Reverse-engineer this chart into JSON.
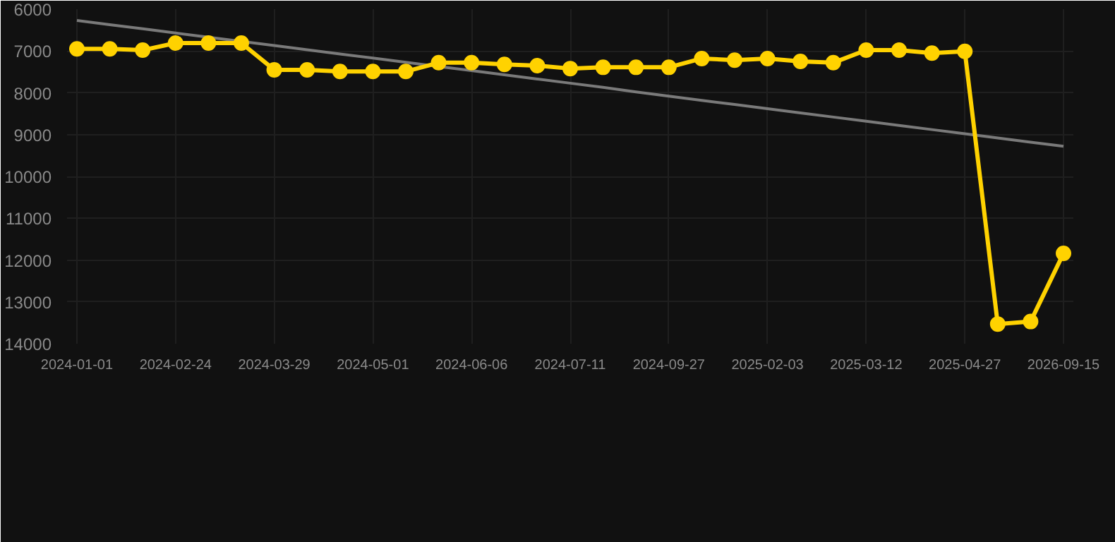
{
  "chart_data": {
    "type": "line",
    "categories": [
      "2024-01-01",
      null,
      null,
      "2024-02-24",
      null,
      null,
      "2024-03-29",
      null,
      null,
      "2024-05-01",
      null,
      null,
      "2024-06-06",
      null,
      null,
      "2024-07-11",
      null,
      null,
      "2024-09-27",
      null,
      null,
      "2025-02-03",
      null,
      null,
      "2025-03-12",
      null,
      null,
      "2025-04-27",
      null,
      null,
      "2026-09-15"
    ],
    "series": [
      {
        "color": "#ffd200",
        "marker": "circle",
        "values": [
          6950,
          6950,
          6980,
          6810,
          6810,
          6810,
          7450,
          7450,
          7490,
          7490,
          7490,
          7280,
          7280,
          7320,
          7350,
          7420,
          7390,
          7390,
          7390,
          7180,
          7220,
          7180,
          7250,
          7280,
          6980,
          6980,
          7050,
          7010,
          13530,
          13470,
          11840
        ]
      },
      {
        "color": "#7a7a7a",
        "marker": "none",
        "values": [
          6270,
          6370,
          6470,
          6570,
          6670,
          null,
          6870,
          6970,
          7070,
          7170,
          7270,
          7370,
          7470,
          7570,
          7670,
          7770,
          7870,
          7980,
          8080,
          8180,
          8280,
          8380,
          8480,
          8580,
          8680,
          8780,
          8880,
          8980,
          9080,
          9180,
          9280
        ]
      }
    ],
    "ylim": [
      14000,
      6000
    ],
    "yticks": [
      6000,
      7000,
      8000,
      9000,
      10000,
      11000,
      12000,
      13000,
      14000
    ],
    "grid": true
  }
}
